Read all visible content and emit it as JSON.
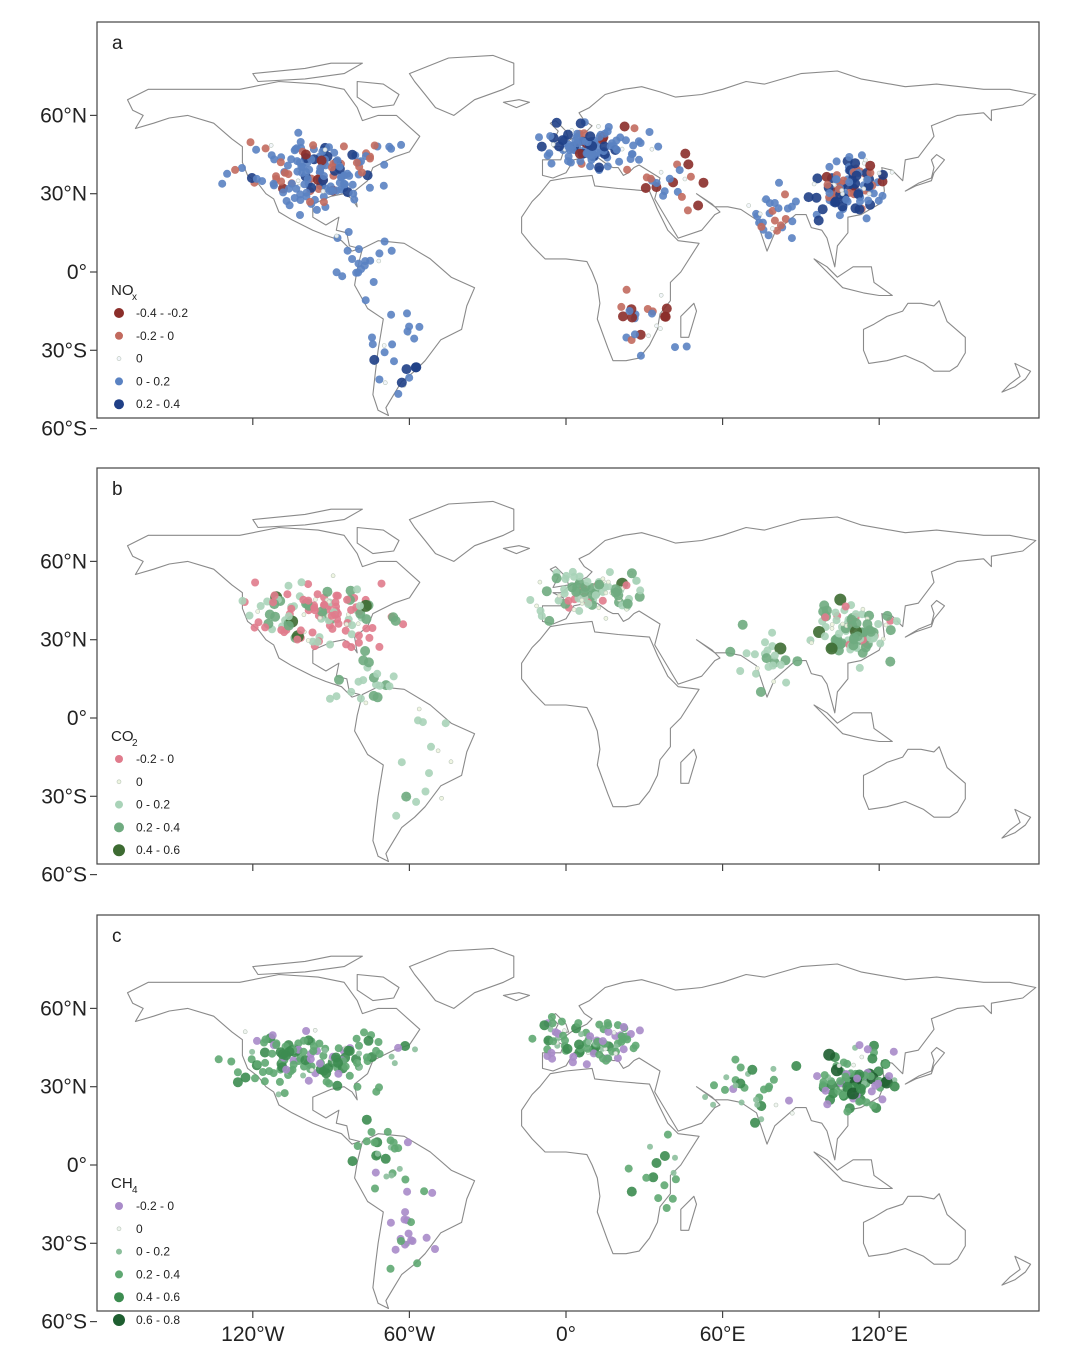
{
  "figure": {
    "y_tick_labels": [
      "60°N",
      "30°N",
      "0°",
      "30°S",
      "60°S"
    ],
    "x_tick_labels": [
      "120°W",
      "60°W",
      "0°",
      "60°E",
      "120°E"
    ]
  },
  "panels": [
    {
      "letter": "a",
      "legend_title_main": "NO",
      "legend_title_sub": "x",
      "legend": [
        {
          "label": "-0.4 - -0.2",
          "color": "#8b2e2a",
          "r": 5
        },
        {
          "label": "-0.2 - 0",
          "color": "#c26a5e",
          "r": 4
        },
        {
          "label": "0",
          "color": "#f2f5fb",
          "r": 2
        },
        {
          "label": "0 - 0.2",
          "color": "#5a82c2",
          "r": 4
        },
        {
          "label": "0.2 - 0.4",
          "color": "#1f3f86",
          "r": 5
        }
      ]
    },
    {
      "letter": "b",
      "legend_title_main": "CO",
      "legend_title_sub": "2",
      "legend": [
        {
          "label": "-0.2 - 0",
          "color": "#e07b8c",
          "r": 4
        },
        {
          "label": "0",
          "color": "#eef5e0",
          "r": 2
        },
        {
          "label": "0 - 0.2",
          "color": "#a9d3b8",
          "r": 4
        },
        {
          "label": "0.2 - 0.4",
          "color": "#6fab80",
          "r": 5
        },
        {
          "label": "0.4 - 0.6",
          "color": "#3d6b32",
          "r": 6
        }
      ]
    },
    {
      "letter": "c",
      "legend_title_main": "CH",
      "legend_title_sub": "4",
      "legend": [
        {
          "label": "-0.2 - 0",
          "color": "#a98bc9",
          "r": 4
        },
        {
          "label": "0",
          "color": "#eef4ee",
          "r": 2
        },
        {
          "label": "0 - 0.2",
          "color": "#8cbf9c",
          "r": 3
        },
        {
          "label": "0.2 - 0.4",
          "color": "#5fa872",
          "r": 4
        },
        {
          "label": "0.4 - 0.6",
          "color": "#3c8c50",
          "r": 5
        },
        {
          "label": "0.6 - 0.8",
          "color": "#1e5e30",
          "r": 6
        }
      ]
    }
  ],
  "colors": {
    "coastline": "#8a8a8a",
    "frame": "#444444"
  }
}
